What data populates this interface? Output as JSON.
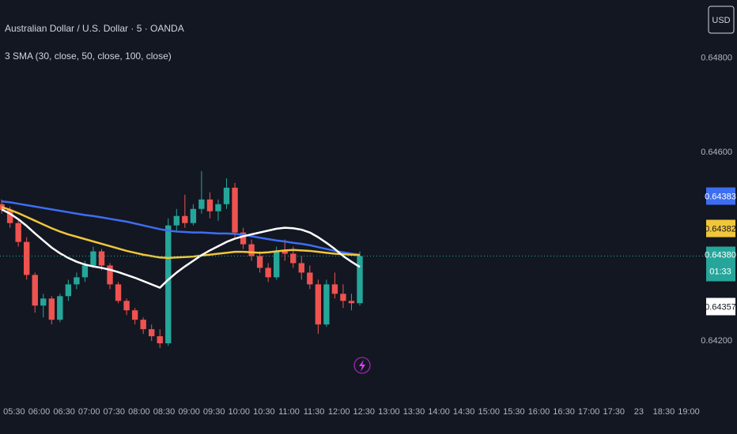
{
  "chart_data": {
    "type": "candlestick",
    "title": "Australian Dollar / U.S. Dollar · 5 · OANDA",
    "subtitle": "3 SMA (30, close, 50, close, 100, close)",
    "currency": "USD",
    "up_color": "#26a69a",
    "down_color": "#ef5350",
    "x": [
      315,
      325,
      335,
      345,
      355,
      365,
      375,
      385,
      395,
      405,
      415,
      425,
      435,
      445,
      455,
      465,
      475,
      485,
      495,
      505,
      515,
      525,
      535,
      545,
      555,
      565,
      575,
      585,
      595,
      605,
      615,
      625,
      635,
      645,
      655,
      665,
      675,
      685,
      695,
      705,
      715,
      725,
      735,
      745
    ],
    "open": [
      0.6449,
      0.64478,
      0.6445,
      0.6441,
      0.6434,
      0.64275,
      0.6429,
      0.64245,
      0.64295,
      0.6432,
      0.64335,
      0.6436,
      0.6439,
      0.6436,
      0.6432,
      0.64285,
      0.64265,
      0.64245,
      0.64225,
      0.6421,
      0.64195,
      0.64445,
      0.64465,
      0.6445,
      0.6448,
      0.645,
      0.64475,
      0.6449,
      0.64525,
      0.6443,
      0.64405,
      0.6438,
      0.64355,
      0.64335,
      0.6439,
      0.64385,
      0.64365,
      0.64345,
      0.6432,
      0.64235,
      0.6432,
      0.643,
      0.64285,
      0.6428
    ],
    "high": [
      0.645,
      0.64485,
      0.64455,
      0.6442,
      0.64345,
      0.643,
      0.64295,
      0.643,
      0.6433,
      0.64345,
      0.6437,
      0.644,
      0.64395,
      0.64365,
      0.64325,
      0.6429,
      0.6427,
      0.6425,
      0.64235,
      0.64225,
      0.6446,
      0.6448,
      0.6451,
      0.6449,
      0.6456,
      0.64515,
      0.645,
      0.64545,
      0.64535,
      0.6444,
      0.64415,
      0.6439,
      0.64365,
      0.644,
      0.64415,
      0.644,
      0.6438,
      0.6436,
      0.6433,
      0.6433,
      0.64345,
      0.6432,
      0.643,
      0.6439
    ],
    "low": [
      0.6447,
      0.6444,
      0.644,
      0.6433,
      0.6426,
      0.6425,
      0.64235,
      0.6424,
      0.64285,
      0.6431,
      0.64325,
      0.64355,
      0.6435,
      0.6431,
      0.6428,
      0.64255,
      0.64235,
      0.64215,
      0.642,
      0.64185,
      0.6419,
      0.6443,
      0.6444,
      0.64445,
      0.6447,
      0.6446,
      0.64455,
      0.6448,
      0.6442,
      0.64395,
      0.6437,
      0.64345,
      0.64325,
      0.6433,
      0.6437,
      0.64355,
      0.6433,
      0.6431,
      0.64215,
      0.6423,
      0.6429,
      0.6427,
      0.64265,
      0.64275
    ],
    "close": [
      0.64478,
      0.6445,
      0.6441,
      0.6434,
      0.64275,
      0.6429,
      0.64245,
      0.64295,
      0.6432,
      0.64335,
      0.6436,
      0.6439,
      0.6436,
      0.6432,
      0.64285,
      0.64265,
      0.64245,
      0.64225,
      0.6421,
      0.64195,
      0.64445,
      0.64465,
      0.6445,
      0.6448,
      0.645,
      0.64475,
      0.6449,
      0.64525,
      0.6443,
      0.64405,
      0.6438,
      0.64355,
      0.64335,
      0.6439,
      0.64385,
      0.64365,
      0.64345,
      0.6432,
      0.64235,
      0.6432,
      0.643,
      0.64285,
      0.6428,
      0.6438
    ],
    "last_label": "0.64380",
    "countdown": "01:33",
    "series": [
      {
        "color": "#3d6ef2",
        "last_label": "0.64383",
        "values": [
          0.64496,
          0.64494,
          0.64491,
          0.64488,
          0.64485,
          0.64482,
          0.64479,
          0.64476,
          0.64473,
          0.6447,
          0.64467,
          0.64465,
          0.64462,
          0.64459,
          0.64456,
          0.64453,
          0.64449,
          0.64445,
          0.64441,
          0.64437,
          0.64434,
          0.64432,
          0.64431,
          0.6443,
          0.6443,
          0.64429,
          0.64428,
          0.64428,
          0.64427,
          0.64425,
          0.64422,
          0.64419,
          0.64416,
          0.64413,
          0.64411,
          0.64408,
          0.64406,
          0.64403,
          0.64399,
          0.64395,
          0.64391,
          0.64388,
          0.64385,
          0.64383
        ]
      },
      {
        "color": "#f0c63a",
        "last_label": "0.64382",
        "values": [
          0.64484,
          0.64478,
          0.64471,
          0.64463,
          0.64455,
          0.64447,
          0.64439,
          0.64432,
          0.64426,
          0.64421,
          0.64416,
          0.64411,
          0.64406,
          0.64401,
          0.64396,
          0.64391,
          0.64387,
          0.64383,
          0.6438,
          0.64377,
          0.64376,
          0.64377,
          0.64378,
          0.64379,
          0.64381,
          0.64383,
          0.64385,
          0.64387,
          0.64389,
          0.64389,
          0.64388,
          0.64387,
          0.64388,
          0.6439,
          0.64392,
          0.64393,
          0.64392,
          0.64391,
          0.64389,
          0.64387,
          0.64385,
          0.64384,
          0.64383,
          0.64382
        ]
      },
      {
        "color": "#ffffff",
        "last_label": "0.64357",
        "values": [
          0.64479,
          0.6447,
          0.64458,
          0.64444,
          0.64428,
          0.64413,
          0.64398,
          0.64386,
          0.64376,
          0.64368,
          0.64362,
          0.64358,
          0.64355,
          0.64351,
          0.64346,
          0.6434,
          0.64334,
          0.64327,
          0.6432,
          0.64313,
          0.6433,
          0.64345,
          0.64358,
          0.6437,
          0.64382,
          0.64392,
          0.64401,
          0.6441,
          0.64417,
          0.64422,
          0.64426,
          0.6443,
          0.64434,
          0.64438,
          0.6444,
          0.64439,
          0.64436,
          0.6443,
          0.6442,
          0.64408,
          0.64395,
          0.6438,
          0.64368,
          0.64357
        ]
      }
    ],
    "xlim": [
      313,
      1158
    ],
    "ylim": [
      0.64078,
      0.64923
    ],
    "yticks": [
      {
        "value": 0.642,
        "label": "0.64200"
      },
      {
        "value": 0.646,
        "label": "0.64600"
      },
      {
        "value": 0.648,
        "label": "0.64800"
      }
    ],
    "xticks": [
      {
        "value": 330,
        "label": "05:30"
      },
      {
        "value": 360,
        "label": "06:00"
      },
      {
        "value": 390,
        "label": "06:30"
      },
      {
        "value": 420,
        "label": "07:00"
      },
      {
        "value": 450,
        "label": "07:30"
      },
      {
        "value": 480,
        "label": "08:00"
      },
      {
        "value": 510,
        "label": "08:30"
      },
      {
        "value": 540,
        "label": "09:00"
      },
      {
        "value": 570,
        "label": "09:30"
      },
      {
        "value": 600,
        "label": "10:00"
      },
      {
        "value": 630,
        "label": "10:30"
      },
      {
        "value": 660,
        "label": "11:00"
      },
      {
        "value": 690,
        "label": "11:30"
      },
      {
        "value": 720,
        "label": "12:00"
      },
      {
        "value": 750,
        "label": "12:30"
      },
      {
        "value": 780,
        "label": "13:00"
      },
      {
        "value": 810,
        "label": "13:30"
      },
      {
        "value": 840,
        "label": "14:00"
      },
      {
        "value": 870,
        "label": "14:30"
      },
      {
        "value": 900,
        "label": "15:00"
      },
      {
        "value": 930,
        "label": "15:30"
      },
      {
        "value": 960,
        "label": "16:00"
      },
      {
        "value": 990,
        "label": "16:30"
      },
      {
        "value": 1020,
        "label": "17:00"
      },
      {
        "value": 1050,
        "label": "17:30"
      },
      {
        "value": 1080,
        "label": "23"
      },
      {
        "value": 1110,
        "label": "18:30"
      },
      {
        "value": 1140,
        "label": "19:00"
      }
    ],
    "grid": false
  }
}
